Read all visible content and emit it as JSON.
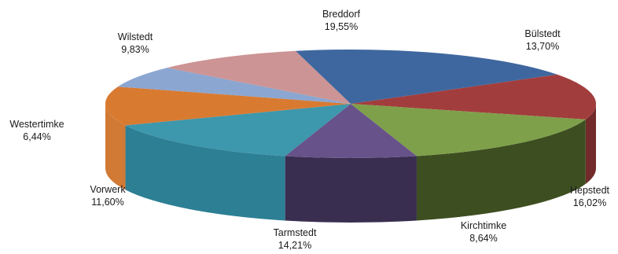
{
  "chart_data": {
    "type": "pie",
    "three_d": true,
    "legend": "none",
    "slices": [
      {
        "name": "Breddorf",
        "value": 19.55,
        "value_label": "19,55%",
        "color": "#3f679f",
        "side": "#2d4b75"
      },
      {
        "name": "Bülstedt",
        "value": 13.7,
        "value_label": "13,70%",
        "color": "#a23d3d",
        "side": "#722a2a"
      },
      {
        "name": "Hepstedt",
        "value": 16.02,
        "value_label": "16,02%",
        "color": "#7fa04a",
        "side": "#3d4f21"
      },
      {
        "name": "Kirchtimke",
        "value": 8.64,
        "value_label": "8,64%",
        "color": "#67528a",
        "side": "#3a2e50"
      },
      {
        "name": "Tarmstedt",
        "value": 14.21,
        "value_label": "14,21%",
        "color": "#3d97ad",
        "side": "#2d7f94"
      },
      {
        "name": "Vorwerk",
        "value": 11.6,
        "value_label": "11,60%",
        "color": "#d97a31",
        "side": "#d07a35"
      },
      {
        "name": "Westertimke",
        "value": 6.44,
        "value_label": "6,44%",
        "color": "#8ba6d1",
        "side": "#6f89b3"
      },
      {
        "name": "Wilstedt",
        "value": 9.83,
        "value_label": "9,83%",
        "color": "#cc9494",
        "side": "#a87474"
      }
    ]
  }
}
